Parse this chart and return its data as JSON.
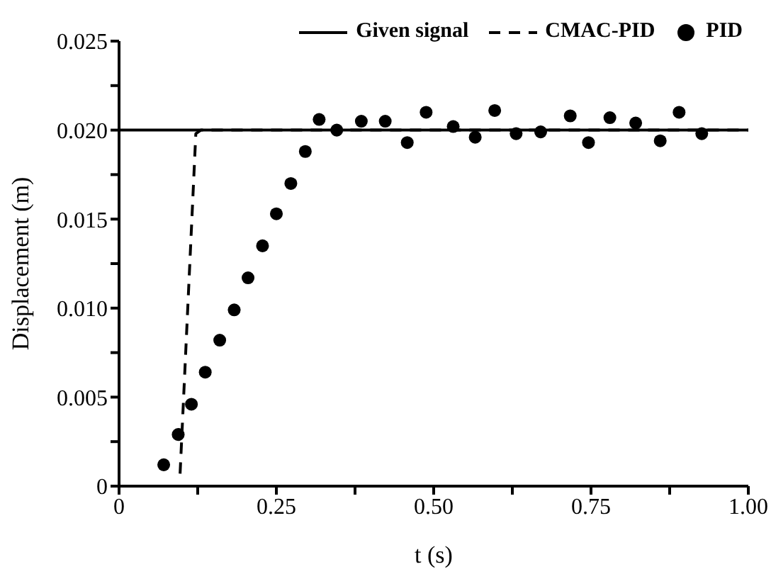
{
  "chart_data": {
    "type": "line",
    "xlabel": "t (s)",
    "ylabel": "Displacement (m)",
    "xlim": [
      0,
      1
    ],
    "ylim": [
      0,
      0.025
    ],
    "xticks": [
      0,
      {
        "value": 0.125,
        "label": null
      },
      {
        "value": 0.25,
        "label": "0.25"
      },
      {
        "value": 0.375,
        "label": null
      },
      {
        "value": 0.5,
        "label": "0.50"
      },
      {
        "value": 0.625,
        "label": null
      },
      {
        "value": 0.75,
        "label": "0.75"
      },
      {
        "value": 0.875,
        "label": null
      },
      {
        "value": 1,
        "label": "1.00"
      }
    ],
    "yticks": [
      0,
      {
        "value": 0.0025,
        "label": null
      },
      0.005,
      {
        "value": 0.0075,
        "label": null
      },
      {
        "value": 0.01,
        "label": "0.010"
      },
      {
        "value": 0.0125,
        "label": null
      },
      0.015,
      {
        "value": 0.0175,
        "label": null
      },
      {
        "value": 0.02,
        "label": "0.020"
      },
      {
        "value": 0.0225,
        "label": null
      },
      0.025
    ],
    "grid": false,
    "legend": "top",
    "series": [
      {
        "name": "Given signal",
        "line_style": "solid",
        "color": "#000000",
        "x": [
          0,
          1
        ],
        "values": [
          0.02,
          0.02
        ]
      },
      {
        "name": "CMAC-PID",
        "line_style": "dashed",
        "color": "#000000",
        "x": [
          0.097,
          0.122,
          0.13,
          1
        ],
        "values": [
          0.0007,
          0.0198,
          0.02,
          0.02
        ]
      },
      {
        "name": "PID",
        "type": "scatter",
        "marker": "circle",
        "color": "#000000",
        "x": [
          0.071,
          0.094,
          0.115,
          0.137,
          0.16,
          0.183,
          0.205,
          0.228,
          0.25,
          0.273,
          0.296,
          0.318,
          0.346,
          0.385,
          0.423,
          0.458,
          0.488,
          0.531,
          0.566,
          0.597,
          0.631,
          0.67,
          0.717,
          0.746,
          0.78,
          0.821,
          0.86,
          0.89,
          0.926
        ],
        "values": [
          0.0012,
          0.0029,
          0.0046,
          0.0064,
          0.0082,
          0.0099,
          0.0117,
          0.0135,
          0.0153,
          0.017,
          0.0188,
          0.0206,
          0.02,
          0.0205,
          0.0205,
          0.0193,
          0.021,
          0.0202,
          0.0196,
          0.0211,
          0.0198,
          0.0199,
          0.0208,
          0.0193,
          0.0207,
          0.0204,
          0.0194,
          0.021,
          0.0198
        ]
      }
    ]
  }
}
